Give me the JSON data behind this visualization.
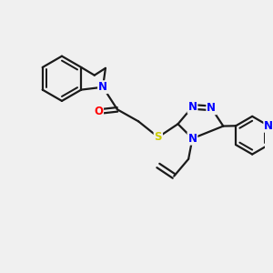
{
  "bg_color": "#f0f0f0",
  "bond_color": "#1a1a1a",
  "bond_width": 1.6,
  "atom_colors": {
    "N": "#0000ff",
    "O": "#ff0000",
    "S": "#cccc00",
    "C": "#1a1a1a"
  },
  "font_size_atom": 8.5,
  "fig_size": [
    3.0,
    3.0
  ],
  "dpi": 100
}
